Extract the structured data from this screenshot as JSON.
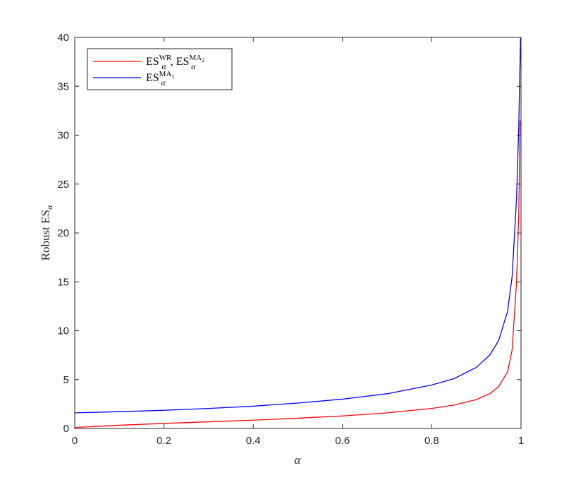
{
  "chart_data": {
    "type": "line",
    "xlabel": "α",
    "ylabel": "Robust ES",
    "ylabel_sub": "α",
    "xlim": [
      0,
      1
    ],
    "ylim": [
      0,
      40
    ],
    "xticks": [
      "0",
      "0.2",
      "0.4",
      "0.6",
      "0.8",
      "1"
    ],
    "yticks": [
      "0",
      "5",
      "10",
      "15",
      "20",
      "25",
      "30",
      "35",
      "40"
    ],
    "grid": false,
    "legend_position": "top-left",
    "series": [
      {
        "name": "ES^WR_α, ES^MA2_α",
        "color": "#ff0000",
        "x": [
          0,
          0.1,
          0.2,
          0.3,
          0.4,
          0.5,
          0.6,
          0.7,
          0.8,
          0.85,
          0.9,
          0.93,
          0.95,
          0.97,
          0.98,
          0.99,
          0.995,
          0.998
        ],
        "y": [
          0.1,
          0.33,
          0.52,
          0.68,
          0.85,
          1.05,
          1.28,
          1.6,
          2.05,
          2.4,
          2.95,
          3.55,
          4.3,
          5.8,
          8.0,
          15.0,
          22.0,
          31.5
        ]
      },
      {
        "name": "ES^MA1_α",
        "color": "#0000ff",
        "x": [
          0,
          0.1,
          0.2,
          0.3,
          0.4,
          0.5,
          0.6,
          0.7,
          0.8,
          0.85,
          0.9,
          0.93,
          0.95,
          0.97,
          0.98,
          0.99,
          0.995,
          0.999
        ],
        "y": [
          1.6,
          1.72,
          1.86,
          2.05,
          2.28,
          2.6,
          3.0,
          3.55,
          4.45,
          5.1,
          6.25,
          7.5,
          9.0,
          12.0,
          15.5,
          23.5,
          31.0,
          40.0
        ]
      }
    ],
    "legend": [
      {
        "base": "ES",
        "sup": "WR",
        "sub": "α",
        "sep": ", ",
        "base2": "ES",
        "sup2": "MA",
        "sup2_sub": "2",
        "sub2": "α",
        "color": "#ff0000"
      },
      {
        "base": "ES",
        "sup": "MA",
        "sup_sub": "1",
        "sub": "α",
        "color": "#0000ff"
      }
    ]
  }
}
